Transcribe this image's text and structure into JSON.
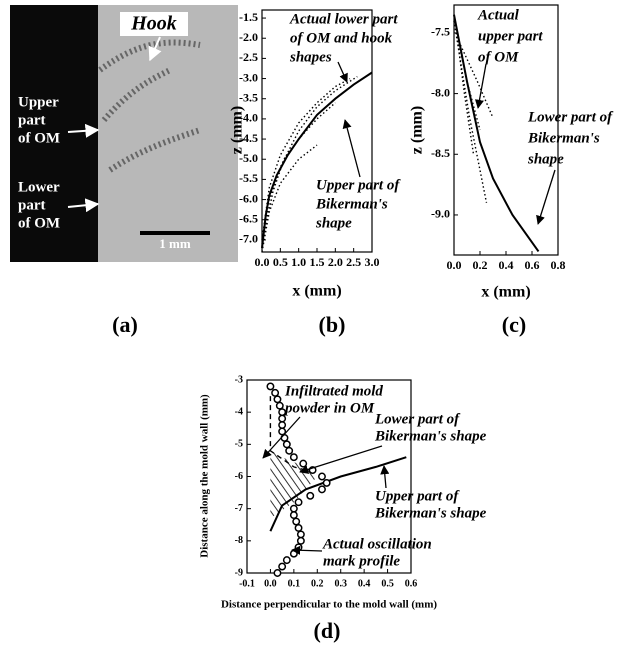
{
  "image": {
    "hook": "Hook",
    "upper": [
      "Upper",
      "part",
      "of OM"
    ],
    "lower": [
      "Lower",
      "part",
      "of OM"
    ],
    "scale_bar": "1 mm",
    "label": "(a)"
  },
  "chart_data": [
    {
      "type": "line",
      "label": "(b)",
      "xlabel": "x (mm)",
      "ylabel": "z (mm)",
      "xlim": [
        0,
        3
      ],
      "ylim": [
        -7.3,
        -1.3
      ],
      "xticks": [
        {
          "value": 0,
          "label": "0.0"
        },
        0.5,
        {
          "value": 1,
          "label": "1.0"
        },
        1.5,
        {
          "value": 2,
          "label": "2.0"
        },
        2.5,
        {
          "value": 3,
          "label": "3.0"
        }
      ],
      "yticks": [
        -1.5,
        {
          "value": -2,
          "label": "-2.0"
        },
        -2.5,
        {
          "value": -3,
          "label": "-3.0"
        },
        -3.5,
        {
          "value": -4,
          "label": "-4.0"
        },
        -4.5,
        {
          "value": -5,
          "label": "-5.0"
        },
        -5.5,
        {
          "value": -6,
          "label": "-6.0"
        },
        -6.5,
        {
          "value": -7,
          "label": "-7.0"
        }
      ],
      "series": [
        {
          "style": "solid",
          "color": "#000000",
          "x": [
            0,
            0.1,
            0.2,
            0.4,
            0.7,
            1.0,
            1.5,
            2.0,
            2.5,
            3.0
          ],
          "values": [
            -7.2,
            -6.4,
            -5.9,
            -5.4,
            -4.9,
            -4.5,
            -3.9,
            -3.5,
            -3.15,
            -2.85
          ]
        },
        {
          "style": "dotted",
          "color": "#000000",
          "x": [
            0,
            0.2,
            0.5,
            1.0,
            1.5,
            2.0,
            2.6
          ],
          "values": [
            -7.2,
            -6.0,
            -5.2,
            -4.3,
            -3.7,
            -3.3,
            -2.95
          ]
        },
        {
          "style": "dotted",
          "color": "#000000",
          "x": [
            0,
            0.2,
            0.5,
            1.0,
            1.5,
            2.0,
            2.4
          ],
          "values": [
            -7.0,
            -5.7,
            -4.9,
            -4.1,
            -3.6,
            -3.2,
            -3.0
          ]
        },
        {
          "style": "dotted",
          "color": "#000000",
          "x": [
            0,
            0.2,
            0.5,
            1.0,
            1.5
          ],
          "values": [
            -7.3,
            -6.3,
            -5.6,
            -5.0,
            -4.65
          ]
        },
        {
          "style": "dotted",
          "color": "#000000",
          "x": [
            0,
            0.3,
            0.6,
            1.0,
            1.5,
            2.0
          ],
          "values": [
            -7.1,
            -5.8,
            -5.0,
            -4.5,
            -4.0,
            -3.6
          ]
        }
      ],
      "annotations": [
        [
          "Actual lower part",
          "of OM and hook",
          "shapes"
        ],
        [
          "Upper part of",
          "Bikerman's",
          "shape"
        ]
      ]
    },
    {
      "type": "line",
      "label": "(c)",
      "xlabel": "x (mm)",
      "ylabel": "z (mm)",
      "xlim": [
        0,
        0.8
      ],
      "ylim": [
        -9.33,
        -7.27
      ],
      "xticks": [
        {
          "value": 0,
          "label": "0.0"
        },
        0.2,
        0.4,
        0.6,
        0.8
      ],
      "yticks": [
        -7.5,
        {
          "value": -8,
          "label": "-8.0"
        },
        -8.5,
        {
          "value": -9,
          "label": "-9.0"
        }
      ],
      "series": [
        {
          "style": "solid",
          "color": "#000000",
          "x": [
            0,
            0.1,
            0.2,
            0.3,
            0.45,
            0.65
          ],
          "values": [
            -7.35,
            -7.9,
            -8.4,
            -8.7,
            -9.0,
            -9.3
          ]
        },
        {
          "style": "dotted",
          "color": "#000000",
          "x": [
            0,
            0.1,
            0.2
          ],
          "values": [
            -7.4,
            -7.9,
            -8.3
          ]
        },
        {
          "style": "dotted",
          "color": "#000000",
          "x": [
            0,
            0.12,
            0.25
          ],
          "values": [
            -7.4,
            -8.2,
            -8.9
          ]
        },
        {
          "style": "dotted",
          "color": "#000000",
          "x": [
            0.02,
            0.08,
            0.15
          ],
          "values": [
            -7.5,
            -8.0,
            -8.5
          ]
        },
        {
          "style": "dotted",
          "color": "#000000",
          "x": [
            0.05,
            0.18,
            0.3
          ],
          "values": [
            -7.6,
            -7.9,
            -8.2
          ]
        }
      ],
      "annotations": [
        [
          "Actual",
          "upper part",
          "of OM"
        ],
        [
          "Lower part of",
          "Bikerman's",
          "shape"
        ]
      ]
    },
    {
      "type": "line",
      "label": "(d)",
      "xlabel": "Distance perpendicular to the mold wall (mm)",
      "ylabel": "Distance along the mold wall (mm)",
      "xlim": [
        -0.1,
        0.6
      ],
      "ylim": [
        -9,
        -3
      ],
      "xticks": [
        -0.1,
        {
          "value": 0,
          "label": "0.0"
        },
        0.1,
        0.2,
        0.3,
        0.4,
        0.5,
        0.6
      ],
      "yticks": [
        -3,
        -4,
        -5,
        -6,
        -7,
        -8,
        -9
      ],
      "series": [
        {
          "style": "hatched",
          "color": "#444444",
          "x": [
            0,
            0,
            0.1,
            0.2,
            0.15,
            0.05,
            0
          ],
          "values": [
            -5.2,
            -7.3,
            -6.8,
            -6.0,
            -5.7,
            -5.4,
            -5.2
          ]
        },
        {
          "style": "dashed",
          "color": "#000000",
          "x": [
            0,
            0,
            0.1,
            0.2
          ],
          "values": [
            -3.5,
            -5.2,
            -5.7,
            -5.9
          ]
        },
        {
          "style": "solid",
          "color": "#000000",
          "x": [
            0,
            0.05,
            0.15,
            0.3,
            0.45,
            0.58
          ],
          "values": [
            -7.7,
            -6.9,
            -6.4,
            -6.0,
            -5.7,
            -5.4
          ]
        },
        {
          "style": "markers",
          "color": "#000000",
          "x": [
            0,
            0.02,
            0.03,
            0.04,
            0.05,
            0.05,
            0.05,
            0.05,
            0.06,
            0.07,
            0.08,
            0.1,
            0.14,
            0.18,
            0.22,
            0.24,
            0.22,
            0.17,
            0.12,
            0.1,
            0.1,
            0.11,
            0.12,
            0.13,
            0.13,
            0.12,
            0.1,
            0.07,
            0.05,
            0.03
          ],
          "values": [
            -3.2,
            -3.4,
            -3.6,
            -3.8,
            -4.0,
            -4.2,
            -4.4,
            -4.6,
            -4.8,
            -5.0,
            -5.2,
            -5.4,
            -5.6,
            -5.8,
            -6.0,
            -6.2,
            -6.4,
            -6.6,
            -6.8,
            -7.0,
            -7.2,
            -7.4,
            -7.6,
            -7.8,
            -8.0,
            -8.2,
            -8.4,
            -8.6,
            -8.8,
            -9.0
          ]
        }
      ],
      "annotations": [
        [
          "Infiltrated mold",
          "powder in OM"
        ],
        [
          "Lower part of",
          "Bikerman's shape"
        ],
        [
          "Upper part of",
          "Bikerman's shape"
        ],
        [
          "Actual oscillation",
          "mark profile"
        ]
      ]
    }
  ]
}
